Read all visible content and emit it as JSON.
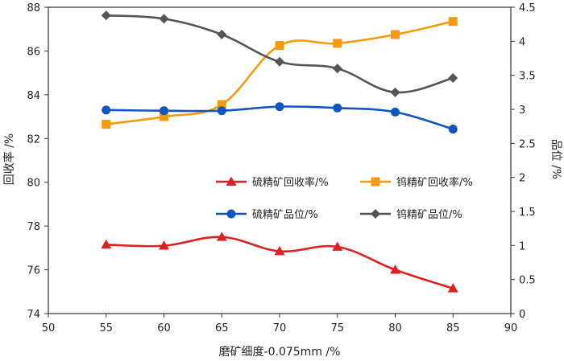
{
  "chart_data": {
    "type": "line",
    "title": "",
    "xlabel": "磨矿细度-0.075mm /%",
    "ylabel_left": "回收率 /%",
    "ylabel_right": "品位 /%",
    "xlim": [
      50,
      90
    ],
    "ylim_left": [
      74,
      88
    ],
    "ylim_right": [
      0,
      4.5
    ],
    "x_ticks": [
      "50",
      "55",
      "60",
      "65",
      "70",
      "75",
      "80",
      "85",
      "90"
    ],
    "y_left_ticks": [
      "74",
      "76",
      "78",
      "80",
      "82",
      "84",
      "86",
      "88"
    ],
    "y_right_ticks": [
      "0",
      "0.5",
      "1",
      "1.5",
      "2",
      "2.5",
      "3",
      "3.5",
      "4",
      "4.5"
    ],
    "x": [
      55,
      60,
      65,
      70,
      75,
      80,
      85
    ],
    "series": [
      {
        "name": "硫精矿回收率/%",
        "axis": "left",
        "color": "#e02020",
        "marker": "triangle",
        "values": [
          77.15,
          77.1,
          77.5,
          76.85,
          77.05,
          76.0,
          75.15
        ]
      },
      {
        "name": "钨精矿回收率/%",
        "axis": "left",
        "color": "#f59a0c",
        "marker": "square",
        "values": [
          82.65,
          83.0,
          83.55,
          86.25,
          86.35,
          86.75,
          87.35
        ]
      },
      {
        "name": "硫精矿品位/%",
        "axis": "right",
        "color": "#1155c0",
        "marker": "circle",
        "values": [
          2.99,
          2.98,
          2.98,
          3.04,
          3.02,
          2.96,
          2.71
        ]
      },
      {
        "name": "钨精矿品位/%",
        "axis": "right",
        "color": "#555555",
        "marker": "diamond",
        "values": [
          4.38,
          4.33,
          4.1,
          3.7,
          3.6,
          3.25,
          3.46
        ]
      }
    ],
    "legend_location": "center-right"
  }
}
